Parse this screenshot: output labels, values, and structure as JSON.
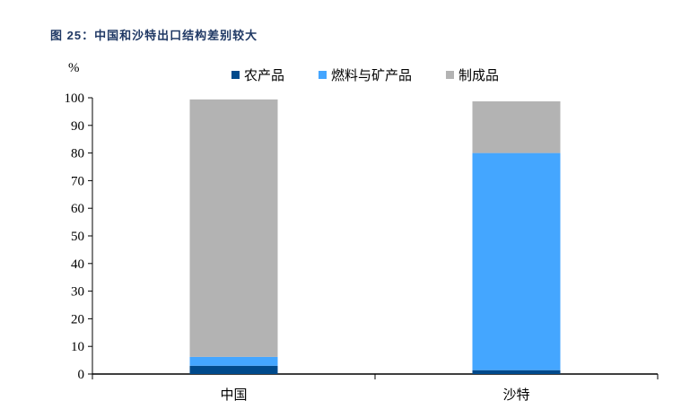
{
  "title": "图 25：中国和沙特出口结构差别较大",
  "chart_data": {
    "type": "bar",
    "stacked": true,
    "title": "图 25：中国和沙特出口结构差别较大",
    "ylabel": "%",
    "ylim": [
      0,
      100
    ],
    "yticks": [
      0,
      10,
      20,
      30,
      40,
      50,
      60,
      70,
      80,
      90,
      100
    ],
    "categories": [
      "中国",
      "沙特"
    ],
    "legend_position": "top",
    "series": [
      {
        "name": "农产品",
        "color": "#004a8c",
        "values": [
          3.0,
          1.4
        ]
      },
      {
        "name": "燃料与矿产品",
        "color": "#44a6ff",
        "values": [
          3.2,
          78.6
        ]
      },
      {
        "name": "制成品",
        "color": "#b3b3b3",
        "values": [
          93.2,
          18.7
        ]
      }
    ]
  }
}
